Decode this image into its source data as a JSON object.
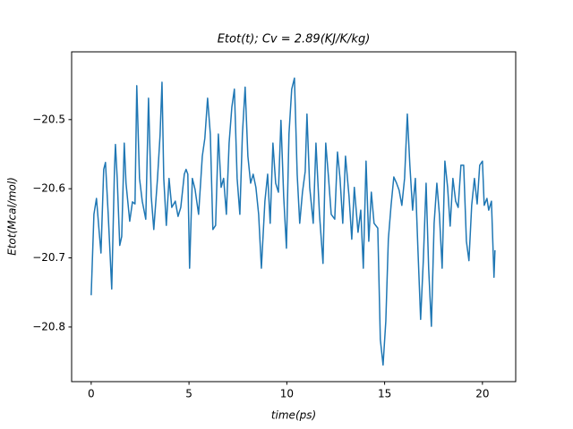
{
  "chart_data": {
    "type": "line",
    "title": "Etot(t); Cv = 2.89(KJ/K/kg)",
    "x_label": "time(ps)",
    "y_label": "Etot(Mcal/mol)",
    "xlim": [
      -1.0,
      21.7
    ],
    "ylim": [
      -20.879,
      -20.402
    ],
    "xticks": [
      0,
      5,
      10,
      15,
      20
    ],
    "yticks": [
      {
        "value": -20.8,
        "label": "−20.8"
      },
      {
        "value": -20.7,
        "label": "−20.7"
      },
      {
        "value": -20.6,
        "label": "−20.6"
      },
      {
        "value": -20.5,
        "label": "−20.5"
      }
    ],
    "grid": false,
    "series": [
      {
        "color": "#1f77b4",
        "x": [
          0,
          0.14,
          0.27,
          0.41,
          0.5,
          0.64,
          0.73,
          0.87,
          1.05,
          1.19,
          1.24,
          1.33,
          1.46,
          1.56,
          1.69,
          1.78,
          1.97,
          2.11,
          2.24,
          2.33,
          2.47,
          2.61,
          2.79,
          2.93,
          3.07,
          3.2,
          3.39,
          3.52,
          3.62,
          3.71,
          3.84,
          3.98,
          4.12,
          4.3,
          4.44,
          4.58,
          4.76,
          4.85,
          4.94,
          5.03,
          5.17,
          5.31,
          5.49,
          5.68,
          5.81,
          5.95,
          6.09,
          6.22,
          6.36,
          6.5,
          6.64,
          6.77,
          6.91,
          7.05,
          7.19,
          7.32,
          7.46,
          7.6,
          7.73,
          7.87,
          8.01,
          8.15,
          8.28,
          8.42,
          8.56,
          8.7,
          8.88,
          9.02,
          9.15,
          9.29,
          9.43,
          9.57,
          9.7,
          9.84,
          9.98,
          10.11,
          10.25,
          10.39,
          10.53,
          10.66,
          10.8,
          10.94,
          11.03,
          11.17,
          11.35,
          11.49,
          11.67,
          11.85,
          11.99,
          12.13,
          12.27,
          12.45,
          12.59,
          12.72,
          12.86,
          13.0,
          13.18,
          13.32,
          13.45,
          13.64,
          13.78,
          13.91,
          14.05,
          14.19,
          14.32,
          14.46,
          14.65,
          14.78,
          14.92,
          15.06,
          15.19,
          15.33,
          15.47,
          15.61,
          15.74,
          15.88,
          16.02,
          16.16,
          16.29,
          16.43,
          16.57,
          16.7,
          16.84,
          16.98,
          17.12,
          17.25,
          17.39,
          17.53,
          17.67,
          17.8,
          17.94,
          18.08,
          18.22,
          18.35,
          18.49,
          18.63,
          18.76,
          18.9,
          19.04,
          19.18,
          19.31,
          19.45,
          19.59,
          19.73,
          19.86,
          20.0,
          20.09,
          20.23,
          20.32,
          20.46,
          20.59,
          20.64
        ],
        "values": [
          -20.754,
          -20.637,
          -20.614,
          -20.663,
          -20.693,
          -20.572,
          -20.562,
          -20.637,
          -20.745,
          -20.572,
          -20.536,
          -20.585,
          -20.682,
          -20.669,
          -20.534,
          -20.592,
          -20.647,
          -20.619,
          -20.622,
          -20.451,
          -20.585,
          -20.618,
          -20.644,
          -20.469,
          -20.611,
          -20.659,
          -20.585,
          -20.523,
          -20.446,
          -20.585,
          -20.653,
          -20.585,
          -20.627,
          -20.618,
          -20.64,
          -20.627,
          -20.579,
          -20.572,
          -20.579,
          -20.715,
          -20.585,
          -20.601,
          -20.637,
          -20.553,
          -20.527,
          -20.469,
          -20.521,
          -20.659,
          -20.653,
          -20.521,
          -20.598,
          -20.585,
          -20.637,
          -20.534,
          -20.482,
          -20.456,
          -20.585,
          -20.637,
          -20.521,
          -20.453,
          -20.553,
          -20.592,
          -20.579,
          -20.598,
          -20.637,
          -20.715,
          -20.618,
          -20.579,
          -20.65,
          -20.534,
          -20.592,
          -20.605,
          -20.501,
          -20.611,
          -20.686,
          -20.521,
          -20.456,
          -20.44,
          -20.579,
          -20.65,
          -20.605,
          -20.575,
          -20.492,
          -20.598,
          -20.65,
          -20.534,
          -20.637,
          -20.708,
          -20.534,
          -20.583,
          -20.637,
          -20.644,
          -20.547,
          -20.585,
          -20.65,
          -20.553,
          -20.611,
          -20.673,
          -20.598,
          -20.663,
          -20.631,
          -20.715,
          -20.56,
          -20.676,
          -20.605,
          -20.65,
          -20.657,
          -20.818,
          -20.855,
          -20.792,
          -20.673,
          -20.624,
          -20.583,
          -20.592,
          -20.602,
          -20.624,
          -20.585,
          -20.492,
          -20.566,
          -20.631,
          -20.585,
          -20.686,
          -20.789,
          -20.702,
          -20.592,
          -20.715,
          -20.799,
          -20.65,
          -20.592,
          -20.637,
          -20.715,
          -20.56,
          -20.598,
          -20.654,
          -20.585,
          -20.618,
          -20.627,
          -20.566,
          -20.566,
          -20.676,
          -20.704,
          -20.624,
          -20.585,
          -20.622,
          -20.566,
          -20.56,
          -20.624,
          -20.614,
          -20.631,
          -20.618,
          -20.728,
          -20.689
        ]
      }
    ]
  }
}
